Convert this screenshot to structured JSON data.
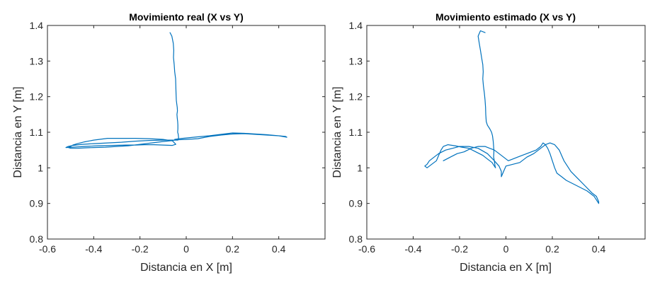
{
  "chart_data": [
    {
      "type": "line",
      "title": "Movimiento real (X vs Y)",
      "xlabel": "Distancia en X [m]",
      "ylabel": "Distancia en Y [m]",
      "xlim": [
        -0.6,
        0.6
      ],
      "ylim": [
        0.8,
        1.4
      ],
      "xticks": [
        "-0.6",
        "-0.4",
        "-0.2",
        "0",
        "0.2",
        "0.4"
      ],
      "yticks": [
        "0.8",
        "0.9",
        "1",
        "1.1",
        "1.2",
        "1.3",
        "1.4"
      ],
      "grid": false,
      "line_color": "#0072BD",
      "series": [
        {
          "x": [
            -0.07,
            -0.062,
            -0.056,
            -0.054,
            -0.055,
            -0.052,
            -0.05,
            -0.046,
            -0.045,
            -0.044,
            -0.043,
            -0.041,
            -0.039,
            -0.038,
            -0.04,
            -0.039,
            -0.037,
            -0.036,
            -0.036,
            -0.037,
            -0.035,
            -0.034,
            -0.033,
            -0.034,
            -0.035,
            -0.036,
            -0.1,
            -0.16,
            -0.22,
            -0.28,
            -0.34,
            -0.4,
            -0.45,
            -0.49,
            -0.51,
            -0.52,
            -0.49,
            -0.44,
            -0.38,
            -0.32,
            -0.26,
            -0.22,
            -0.18,
            -0.14,
            -0.1,
            -0.06,
            -0.045,
            -0.06,
            -0.1,
            -0.16,
            -0.22,
            -0.28,
            -0.34,
            -0.4,
            -0.44,
            -0.47,
            -0.49,
            -0.5,
            -0.51,
            -0.5,
            -0.47,
            -0.44,
            -0.4,
            -0.35,
            -0.3,
            -0.25,
            -0.2,
            -0.15,
            -0.1,
            -0.07,
            -0.05,
            -0.035,
            0.0,
            0.05,
            0.1,
            0.15,
            0.2,
            0.25,
            0.3,
            0.35,
            0.4,
            0.43,
            0.435,
            0.4,
            0.35,
            0.3,
            0.25,
            0.2,
            0.15,
            0.1,
            0.05,
            0.0,
            -0.03,
            -0.05
          ],
          "y": [
            1.38,
            1.37,
            1.35,
            1.33,
            1.31,
            1.29,
            1.27,
            1.25,
            1.23,
            1.21,
            1.19,
            1.18,
            1.17,
            1.16,
            1.15,
            1.14,
            1.13,
            1.12,
            1.11,
            1.1,
            1.095,
            1.09,
            1.085,
            1.082,
            1.08,
            1.078,
            1.078,
            1.077,
            1.075,
            1.072,
            1.07,
            1.068,
            1.066,
            1.063,
            1.06,
            1.057,
            1.058,
            1.06,
            1.062,
            1.063,
            1.064,
            1.064,
            1.065,
            1.065,
            1.064,
            1.063,
            1.066,
            1.076,
            1.08,
            1.082,
            1.083,
            1.083,
            1.083,
            1.078,
            1.073,
            1.068,
            1.064,
            1.06,
            1.057,
            1.055,
            1.055,
            1.056,
            1.057,
            1.058,
            1.06,
            1.062,
            1.066,
            1.07,
            1.074,
            1.076,
            1.078,
            1.079,
            1.08,
            1.082,
            1.088,
            1.092,
            1.095,
            1.096,
            1.094,
            1.092,
            1.09,
            1.088,
            1.086,
            1.09,
            1.093,
            1.095,
            1.097,
            1.098,
            1.094,
            1.09,
            1.087,
            1.084,
            1.082,
            1.08
          ]
        }
      ]
    },
    {
      "type": "line",
      "title": "Movimiento estimado (X vs Y)",
      "xlabel": "Distancia en X [m]",
      "ylabel": "Distancia en Y [m]",
      "xlim": [
        -0.6,
        0.6
      ],
      "ylim": [
        0.8,
        1.4
      ],
      "xticks": [
        "-0.6",
        "-0.4",
        "-0.2",
        "0",
        "0.2",
        "0.4"
      ],
      "yticks": [
        "0.8",
        "0.9",
        "1",
        "1.1",
        "1.2",
        "1.3",
        "1.4"
      ],
      "grid": false,
      "line_color": "#0072BD",
      "series": [
        {
          "x": [
            -0.09,
            -0.11,
            -0.12,
            -0.115,
            -0.11,
            -0.105,
            -0.1,
            -0.098,
            -0.1,
            -0.097,
            -0.093,
            -0.09,
            -0.088,
            -0.087,
            -0.085,
            -0.08,
            -0.075,
            -0.07,
            -0.062,
            -0.058,
            -0.055,
            -0.053,
            -0.052,
            -0.053,
            -0.05,
            -0.048,
            -0.047,
            -0.045,
            -0.05,
            -0.06,
            -0.08,
            -0.1,
            -0.13,
            -0.16,
            -0.19,
            -0.22,
            -0.25,
            -0.27,
            -0.28,
            -0.29,
            -0.3,
            -0.32,
            -0.34,
            -0.35,
            -0.34,
            -0.33,
            -0.31,
            -0.29,
            -0.26,
            -0.23,
            -0.2,
            -0.16,
            -0.12,
            -0.08,
            -0.05,
            -0.03,
            -0.02,
            -0.02,
            -0.01,
            0.0,
            0.03,
            0.06,
            0.09,
            0.12,
            0.15,
            0.17,
            0.19,
            0.21,
            0.23,
            0.25,
            0.28,
            0.31,
            0.34,
            0.37,
            0.39,
            0.4,
            0.4,
            0.38,
            0.35,
            0.32,
            0.29,
            0.26,
            0.24,
            0.22,
            0.21,
            0.2,
            0.19,
            0.18,
            0.17,
            0.16,
            0.15,
            0.13,
            0.11,
            0.09,
            0.07,
            0.05,
            0.03,
            0.01,
            -0.01,
            -0.03,
            -0.05,
            -0.07,
            -0.09,
            -0.12,
            -0.15,
            -0.18,
            -0.21,
            -0.24,
            -0.27
          ],
          "y": [
            1.38,
            1.385,
            1.37,
            1.35,
            1.33,
            1.31,
            1.29,
            1.27,
            1.25,
            1.23,
            1.21,
            1.19,
            1.17,
            1.15,
            1.13,
            1.12,
            1.115,
            1.11,
            1.1,
            1.09,
            1.075,
            1.06,
            1.045,
            1.03,
            1.02,
            1.01,
            1.005,
            1.0,
            1.005,
            1.015,
            1.025,
            1.035,
            1.045,
            1.055,
            1.058,
            1.062,
            1.065,
            1.06,
            1.05,
            1.035,
            1.02,
            1.01,
            1.0,
            1.005,
            1.01,
            1.02,
            1.03,
            1.04,
            1.05,
            1.055,
            1.06,
            1.06,
            1.055,
            1.04,
            1.02,
            1.005,
            0.99,
            0.975,
            0.99,
            1.005,
            1.01,
            1.015,
            1.03,
            1.04,
            1.055,
            1.065,
            1.07,
            1.065,
            1.05,
            1.02,
            0.99,
            0.97,
            0.95,
            0.93,
            0.92,
            0.905,
            0.9,
            0.92,
            0.935,
            0.945,
            0.955,
            0.965,
            0.975,
            0.985,
            1.0,
            1.02,
            1.04,
            1.055,
            1.065,
            1.07,
            1.06,
            1.05,
            1.045,
            1.04,
            1.035,
            1.03,
            1.025,
            1.02,
            1.03,
            1.04,
            1.05,
            1.055,
            1.06,
            1.06,
            1.055,
            1.045,
            1.04,
            1.03,
            1.02
          ]
        }
      ]
    }
  ]
}
